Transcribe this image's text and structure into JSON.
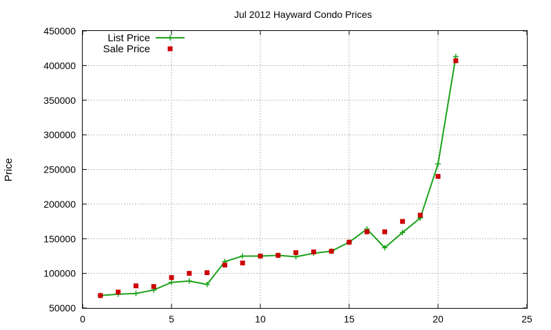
{
  "chart_data": {
    "type": "line",
    "title": "Jul 2012 Hayward Condo Prices",
    "xlabel": "",
    "ylabel": "Price",
    "xlim": [
      0,
      25
    ],
    "ylim": [
      50000,
      450000
    ],
    "xticks": [
      0,
      5,
      10,
      15,
      20,
      25
    ],
    "yticks": [
      50000,
      100000,
      150000,
      200000,
      250000,
      300000,
      350000,
      400000,
      450000
    ],
    "grid": true,
    "legend_position": "top-left",
    "series": [
      {
        "name": "List Price",
        "style": "line-with-plus-markers",
        "color": "#1aa11a",
        "x": [
          1,
          2,
          3,
          4,
          5,
          6,
          7,
          8,
          9,
          10,
          11,
          12,
          13,
          14,
          15,
          16,
          17,
          18,
          19,
          20,
          21
        ],
        "y": [
          68000,
          70000,
          71000,
          76000,
          87000,
          89000,
          84000,
          117000,
          125000,
          125000,
          126000,
          124000,
          129000,
          132000,
          145000,
          164000,
          137000,
          159000,
          180000,
          258000,
          413000
        ]
      },
      {
        "name": "Sale Price",
        "style": "square-markers",
        "color": "#cc0000",
        "x": [
          1,
          2,
          3,
          4,
          5,
          6,
          7,
          8,
          9,
          10,
          11,
          12,
          13,
          14,
          15,
          16,
          17,
          18,
          19,
          20,
          21
        ],
        "y": [
          68000,
          73000,
          82000,
          81000,
          94000,
          100000,
          101000,
          112000,
          115000,
          125000,
          126000,
          130000,
          131000,
          132000,
          145000,
          160000,
          160000,
          175000,
          184000,
          240000,
          407000
        ]
      }
    ]
  }
}
